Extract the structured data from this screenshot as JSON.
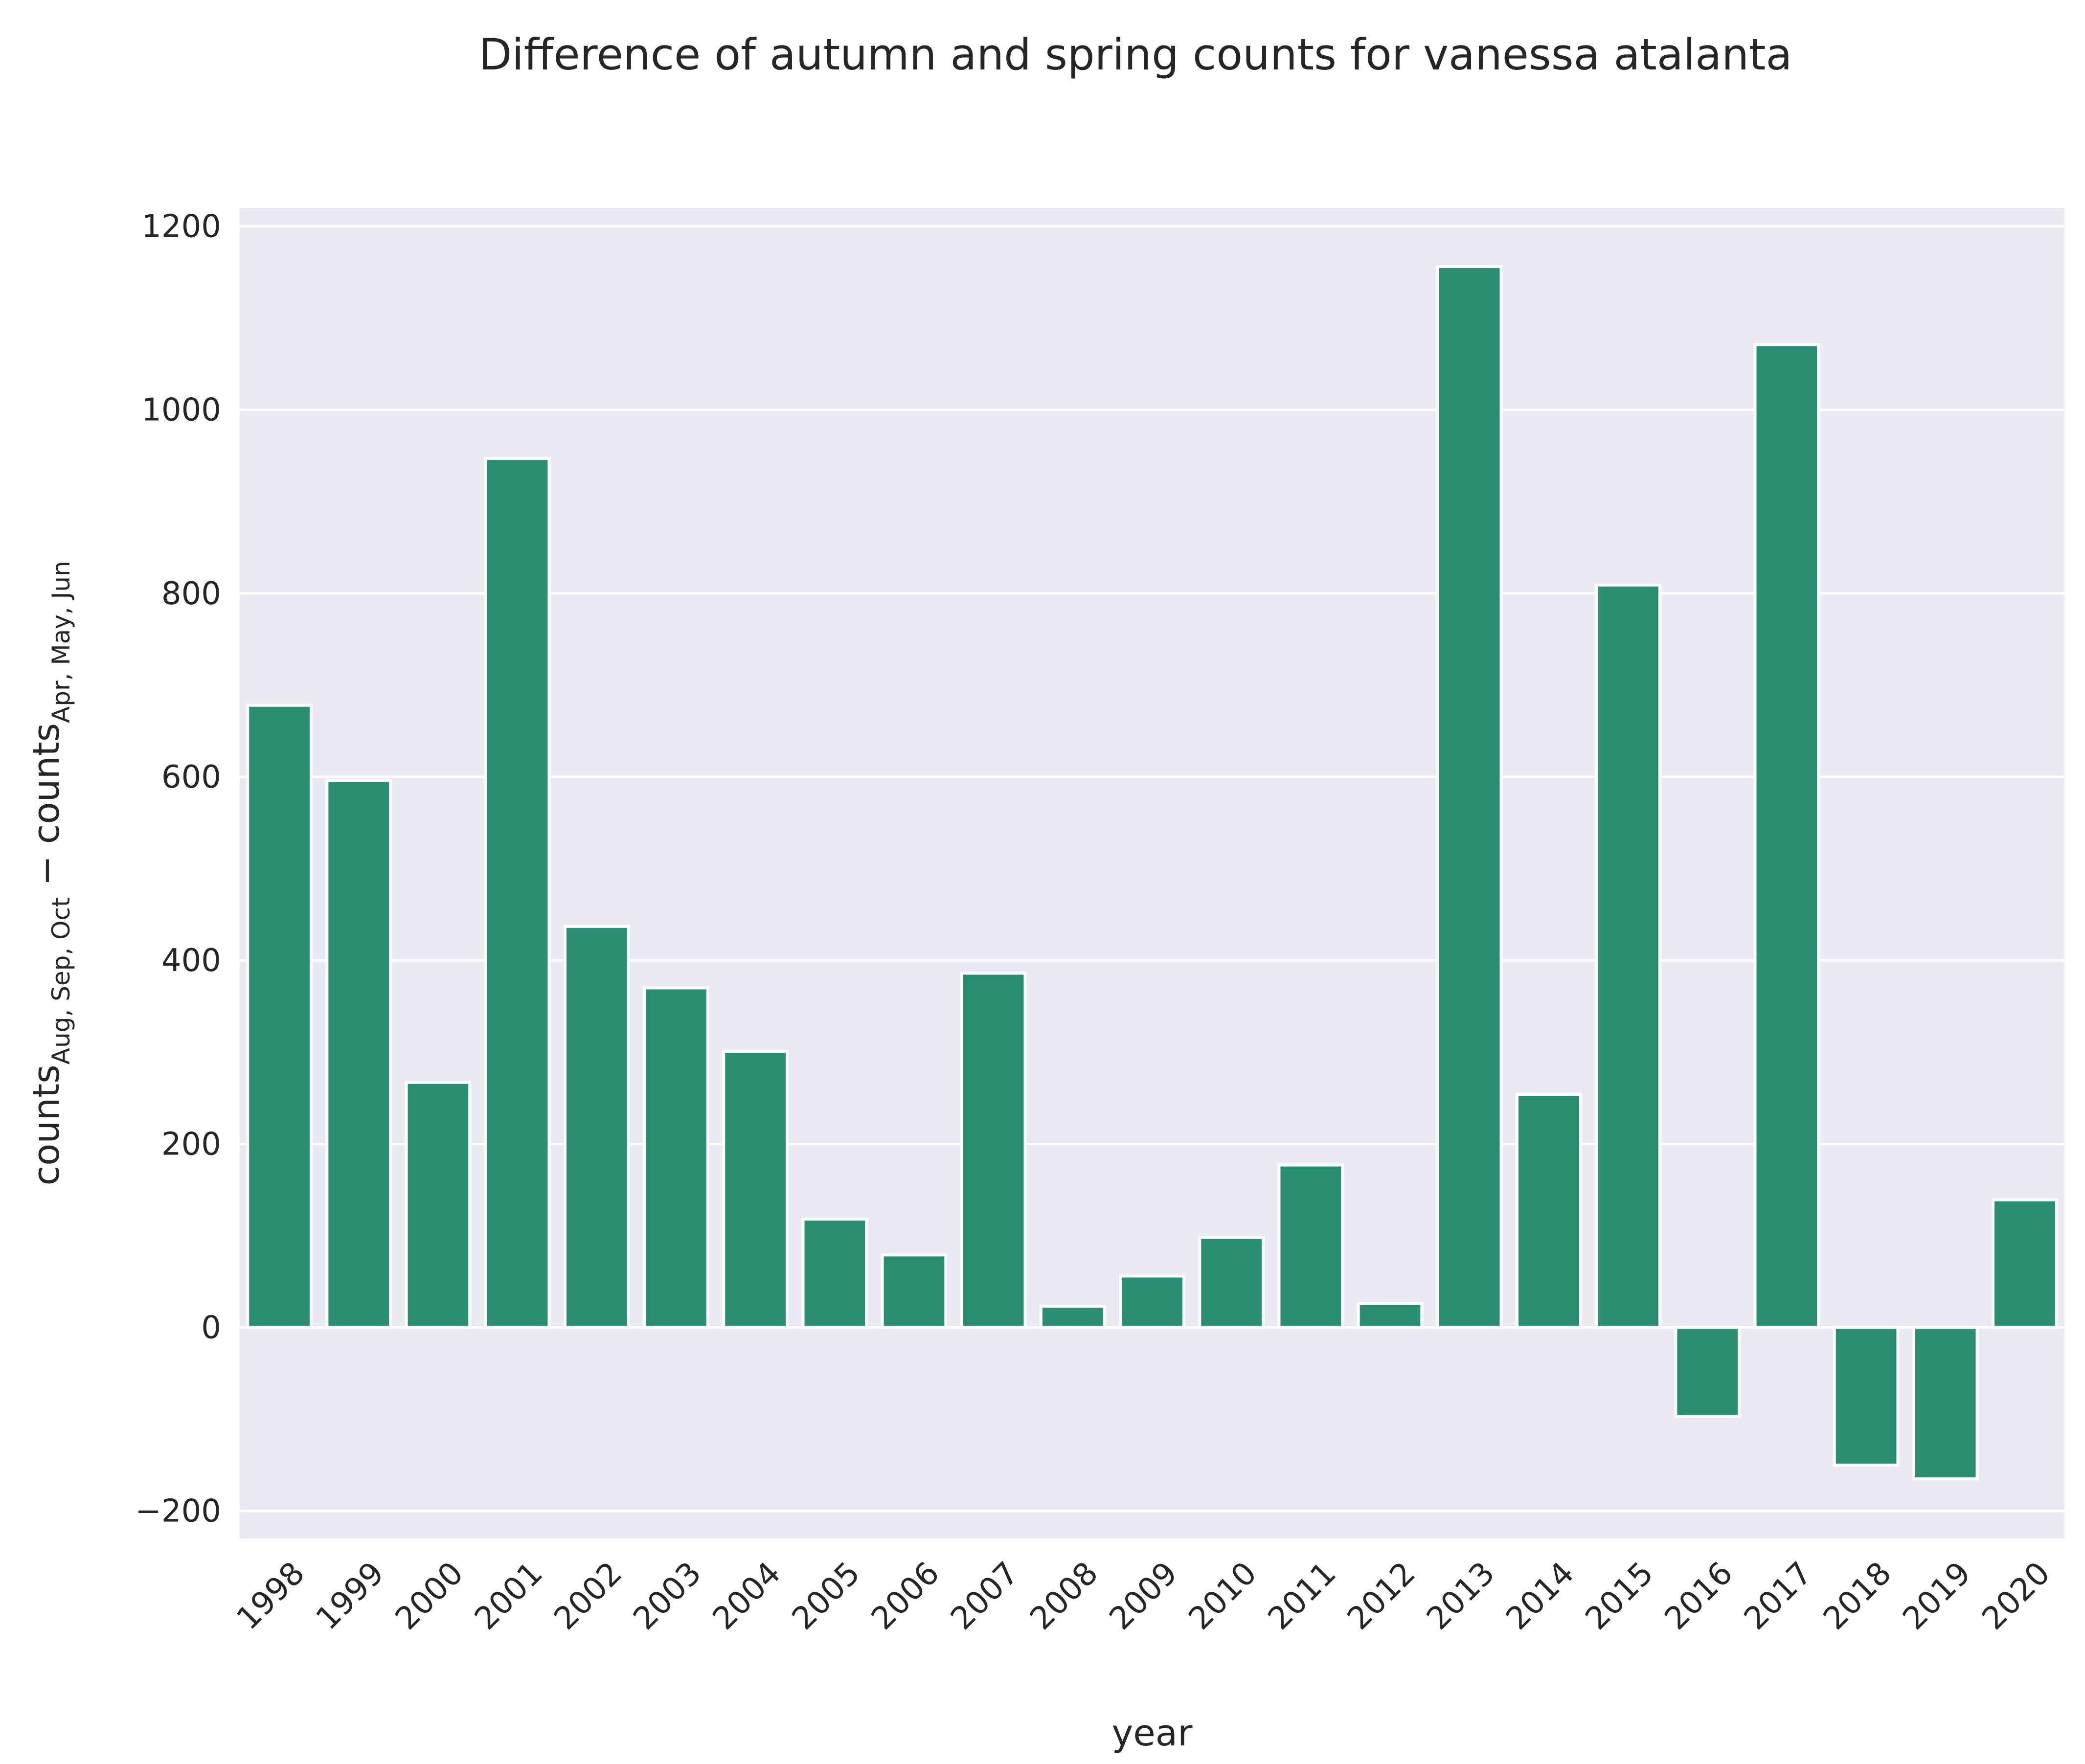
{
  "chart_data": {
    "type": "bar",
    "title": "Difference of autumn and spring counts for vanessa atalanta",
    "xlabel": "year",
    "ylabel": {
      "base1": "counts",
      "sub1": "Aug, Sep, Oct",
      "operator": " − ",
      "base2": "counts",
      "sub2": "Apr, May, Jun"
    },
    "categories": [
      "1998",
      "1999",
      "2000",
      "2001",
      "2002",
      "2003",
      "2004",
      "2005",
      "2006",
      "2007",
      "2008",
      "2009",
      "2010",
      "2011",
      "2012",
      "2013",
      "2014",
      "2015",
      "2016",
      "2017",
      "2018",
      "2019",
      "2020"
    ],
    "values": [
      678,
      596,
      267,
      947,
      437,
      370,
      301,
      118,
      79,
      386,
      23,
      56,
      98,
      177,
      26,
      1156,
      254,
      809,
      -97,
      1071,
      -150,
      -165,
      139
    ],
    "ylim": [
      -230,
      1220
    ],
    "yticks": [
      -200,
      0,
      200,
      400,
      600,
      800,
      1000,
      1200
    ],
    "ytick_labels": [
      "−200",
      "0",
      "200",
      "400",
      "600",
      "800",
      "1000",
      "1200"
    ],
    "bar_color": "#2a8f72",
    "background_color": "#eaeaf2",
    "grid": true,
    "legend": "none"
  }
}
